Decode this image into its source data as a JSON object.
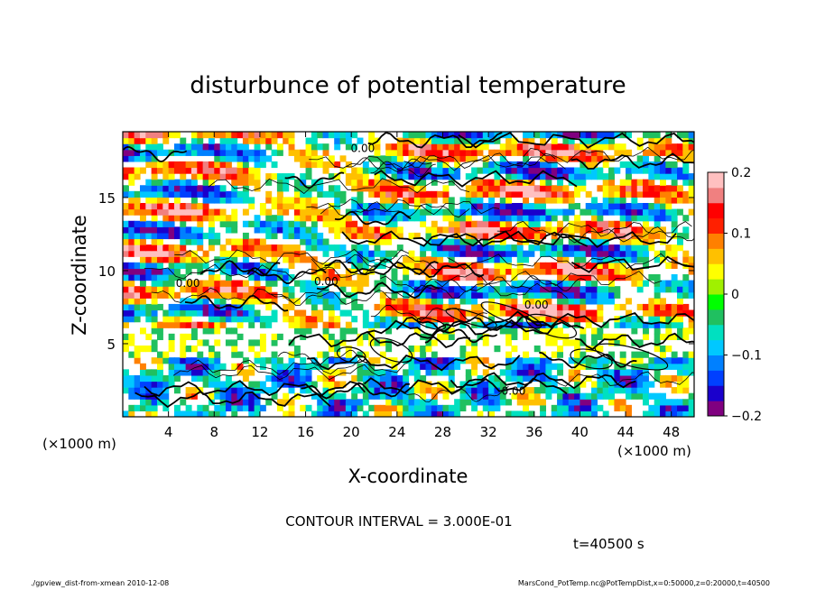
{
  "chart_data": {
    "type": "heatmap",
    "title": "disturbunce of potential temperature",
    "xlabel": "X-coordinate",
    "ylabel": "Z-coordinate",
    "x_unit_left": "(×1000 m)",
    "x_unit_right": "(×1000 m)",
    "xlim": [
      0,
      50
    ],
    "ylim": [
      0,
      19.5
    ],
    "x_ticks": [
      4,
      8,
      12,
      16,
      20,
      24,
      28,
      32,
      36,
      40,
      44,
      48
    ],
    "x_tick_labels": [
      "4",
      "8",
      "12",
      "16",
      "20",
      "24",
      "28",
      "32",
      "36",
      "40",
      "44",
      "48"
    ],
    "y_ticks": [
      5,
      10,
      15
    ],
    "y_tick_labels": [
      "5",
      "10",
      "15"
    ],
    "contour_labels": [
      {
        "x": 5.7,
        "z": 8.9,
        "text": "0.00"
      },
      {
        "x": 17.8,
        "z": 9.0,
        "text": "0.00"
      },
      {
        "x": 34.2,
        "z": 1.5,
        "text": "0.00"
      },
      {
        "x": 36.2,
        "z": 7.4,
        "text": "0.00"
      },
      {
        "x": 21.0,
        "z": 18.1,
        "text": "0.00"
      }
    ],
    "colorbar": {
      "min": -0.2,
      "max": 0.2,
      "ticks": [
        0.2,
        0.1,
        0,
        -0.1,
        -0.2
      ],
      "tick_labels": [
        "0.2",
        "0.1",
        "0",
        "−0.1",
        "−0.2"
      ],
      "colors": [
        "#800080",
        "#1a00cc",
        "#0040ff",
        "#0080ff",
        "#00c8ff",
        "#00e0c0",
        "#20c060",
        "#00ff00",
        "#a0f000",
        "#ffff00",
        "#ffc000",
        "#ff8000",
        "#ff2000",
        "#ff0000",
        "#f08080",
        "#ffc0c0"
      ]
    },
    "grid": false
  },
  "contour_interval_text": "CONTOUR INTERVAL = 3.000E-01",
  "time_text": "t=40500 s",
  "footer_left": "./gpview_dist-from-xmean  2010-12-08",
  "footer_right": "MarsCond_PotTemp.nc@PotTempDist,x=0:50000,z=0:20000,t=40500"
}
